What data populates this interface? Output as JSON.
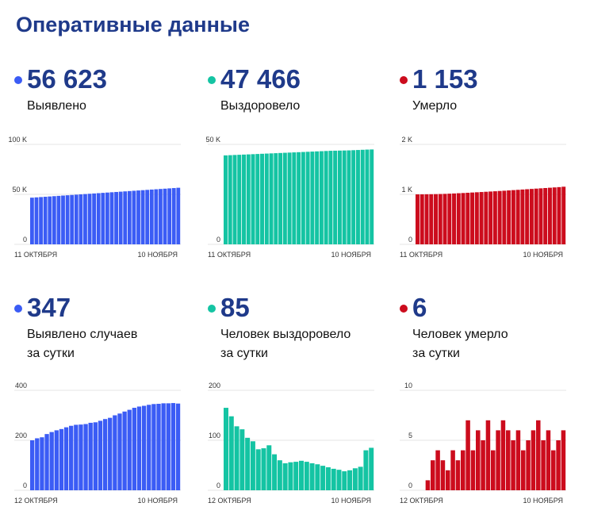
{
  "page": {
    "title": "Оперативные данные"
  },
  "panels": [
    {
      "key": "p1",
      "value": "56 623",
      "label": [
        "Выявлено"
      ],
      "color": "#3b5cf5",
      "chart_data": {
        "type": "bar",
        "ylim": [
          0,
          100000
        ],
        "yticks": [
          {
            "v": 0,
            "label": "0"
          },
          {
            "v": 50000,
            "label": "50 K"
          },
          {
            "v": 100000,
            "label": "100 K"
          }
        ],
        "xlabels": [
          "11 ОКТЯБРЯ",
          "10 НОЯБРЯ"
        ],
        "values": [
          46700,
          47000,
          47300,
          47600,
          47900,
          48200,
          48500,
          48800,
          49100,
          49400,
          49700,
          50000,
          50300,
          50600,
          50900,
          51200,
          51500,
          51800,
          52100,
          52400,
          52700,
          53000,
          53300,
          53600,
          53900,
          54200,
          54500,
          54800,
          55100,
          55400,
          55700,
          56000,
          56300,
          56623
        ]
      }
    },
    {
      "key": "p2",
      "value": "47 466",
      "label": [
        "Выздоровело"
      ],
      "color": "#14c4a3",
      "chart_data": {
        "type": "bar",
        "ylim": [
          0,
          50000
        ],
        "yticks": [
          {
            "v": 0,
            "label": "0"
          },
          {
            "v": 50000,
            "label": "50 K"
          }
        ],
        "xlabels": [
          "11 ОКТЯБРЯ",
          "10 НОЯБРЯ"
        ],
        "values": [
          44500,
          44600,
          44700,
          44800,
          44900,
          45000,
          45100,
          45200,
          45300,
          45400,
          45500,
          45600,
          45700,
          45800,
          45900,
          46000,
          46100,
          46200,
          46300,
          46400,
          46500,
          46600,
          46700,
          46800,
          46850,
          46900,
          46950,
          47000,
          47100,
          47200,
          47300,
          47400,
          47466
        ]
      }
    },
    {
      "key": "p3",
      "value": "1 153",
      "label": [
        "Умерло"
      ],
      "color": "#cc0c1d",
      "chart_data": {
        "type": "bar",
        "ylim": [
          0,
          2000
        ],
        "yticks": [
          {
            "v": 0,
            "label": "0"
          },
          {
            "v": 1000,
            "label": "1 K"
          },
          {
            "v": 2000,
            "label": "2 K"
          }
        ],
        "xlabels": [
          "11 ОКТЯБРЯ",
          "10 НОЯБРЯ"
        ],
        "values": [
          1000,
          1001,
          1002,
          1003,
          1005,
          1007,
          1010,
          1014,
          1018,
          1023,
          1027,
          1032,
          1037,
          1042,
          1047,
          1052,
          1057,
          1062,
          1068,
          1073,
          1079,
          1085,
          1091,
          1097,
          1103,
          1109,
          1115,
          1121,
          1127,
          1133,
          1139,
          1145,
          1153
        ]
      }
    },
    {
      "key": "p4",
      "value": "347",
      "label": [
        "Выявлено случаев",
        "за сутки"
      ],
      "color": "#3b5cf5",
      "chart_data": {
        "type": "bar",
        "ylim": [
          0,
          400
        ],
        "yticks": [
          {
            "v": 0,
            "label": "0"
          },
          {
            "v": 200,
            "label": "200"
          },
          {
            "v": 400,
            "label": "400"
          }
        ],
        "xlabels": [
          "12 ОКТЯБРЯ",
          "10 НОЯБРЯ"
        ],
        "values": [
          200,
          208,
          212,
          225,
          233,
          240,
          245,
          252,
          258,
          262,
          263,
          265,
          270,
          272,
          278,
          285,
          290,
          300,
          307,
          315,
          322,
          330,
          335,
          338,
          342,
          345,
          346,
          348,
          348,
          349,
          347
        ]
      }
    },
    {
      "key": "p5",
      "value": "85",
      "label": [
        "Человек выздоровело",
        "за сутки"
      ],
      "color": "#14c4a3",
      "chart_data": {
        "type": "bar",
        "ylim": [
          0,
          200
        ],
        "yticks": [
          {
            "v": 0,
            "label": "0"
          },
          {
            "v": 100,
            "label": "100"
          },
          {
            "v": 200,
            "label": "200"
          }
        ],
        "xlabels": [
          "12 ОКТЯБРЯ",
          "10 НОЯБРЯ"
        ],
        "values": [
          165,
          148,
          128,
          122,
          105,
          98,
          82,
          84,
          90,
          72,
          60,
          54,
          56,
          57,
          59,
          57,
          54,
          52,
          49,
          46,
          43,
          41,
          38,
          40,
          44,
          47,
          80,
          85
        ]
      }
    },
    {
      "key": "p6",
      "value": "6",
      "label": [
        "Человек умерло",
        "за сутки"
      ],
      "color": "#cc0c1d",
      "chart_data": {
        "type": "bar",
        "ylim": [
          0,
          10
        ],
        "yticks": [
          {
            "v": 0,
            "label": "0"
          },
          {
            "v": 5,
            "label": "5"
          },
          {
            "v": 10,
            "label": "10"
          }
        ],
        "xlabels": [
          "12 ОКТЯБРЯ",
          "10 НОЯБРЯ"
        ],
        "values": [
          0,
          0,
          1,
          3,
          4,
          3,
          2,
          4,
          3,
          4,
          7,
          4,
          6,
          5,
          7,
          4,
          6,
          7,
          6,
          5,
          6,
          4,
          5,
          6,
          7,
          5,
          6,
          4,
          5,
          6
        ]
      }
    }
  ]
}
